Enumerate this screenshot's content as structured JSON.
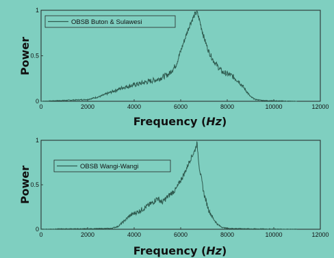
{
  "chart_data": [
    {
      "type": "line",
      "xlabel": "Frequency",
      "xlabel_unit": "Hz",
      "ylabel": "Power",
      "xlim": [
        0,
        12000
      ],
      "ylim": [
        0,
        1
      ],
      "x_ticks": [
        "0",
        "2000",
        "4000",
        "6000",
        "8000",
        "10000",
        "12000"
      ],
      "y_ticks": [
        "0",
        "0.5",
        "1"
      ],
      "legend_position": "top-left",
      "line_color": "#2e5a4e",
      "series": [
        {
          "name": "OBSB Buton & Sulawesi",
          "x": [
            0,
            500,
            1000,
            1500,
            2000,
            2500,
            3000,
            3500,
            4000,
            4500,
            5000,
            5500,
            5800,
            6000,
            6200,
            6400,
            6600,
            6700,
            6800,
            7000,
            7200,
            7400,
            7600,
            7800,
            8000,
            8200,
            8500,
            8800,
            9000,
            9200,
            9500,
            10000,
            11000
          ],
          "y": [
            0.0,
            0.005,
            0.01,
            0.015,
            0.02,
            0.05,
            0.1,
            0.15,
            0.18,
            0.21,
            0.24,
            0.3,
            0.4,
            0.55,
            0.7,
            0.85,
            0.95,
            0.98,
            0.9,
            0.7,
            0.55,
            0.45,
            0.38,
            0.32,
            0.3,
            0.28,
            0.22,
            0.12,
            0.05,
            0.02,
            0.01,
            0.005,
            0.0
          ]
        }
      ]
    },
    {
      "type": "line",
      "xlabel": "Frequency",
      "xlabel_unit": "Hz",
      "ylabel": "Power",
      "xlim": [
        0,
        12000
      ],
      "ylim": [
        0,
        1
      ],
      "x_ticks": [
        "0",
        "2000",
        "4000",
        "6000",
        "8000",
        "10000",
        "12000"
      ],
      "y_ticks": [
        "0",
        "0.5",
        "1"
      ],
      "legend_position": "top-left",
      "line_color": "#2e5a4e",
      "series": [
        {
          "name": "OBSB Wangi-Wangi",
          "x": [
            0,
            1000,
            2000,
            3000,
            3300,
            3600,
            3800,
            4000,
            4200,
            4500,
            4800,
            5000,
            5200,
            5500,
            5800,
            6000,
            6200,
            6400,
            6600,
            6700,
            6800,
            7000,
            7200,
            7400,
            7600,
            7800,
            8000,
            9000,
            11000
          ],
          "y": [
            0.0,
            0.005,
            0.005,
            0.01,
            0.03,
            0.1,
            0.15,
            0.18,
            0.2,
            0.25,
            0.3,
            0.35,
            0.3,
            0.38,
            0.45,
            0.55,
            0.65,
            0.78,
            0.88,
            0.97,
            0.7,
            0.4,
            0.22,
            0.12,
            0.05,
            0.02,
            0.01,
            0.005,
            0.0
          ]
        }
      ]
    }
  ]
}
